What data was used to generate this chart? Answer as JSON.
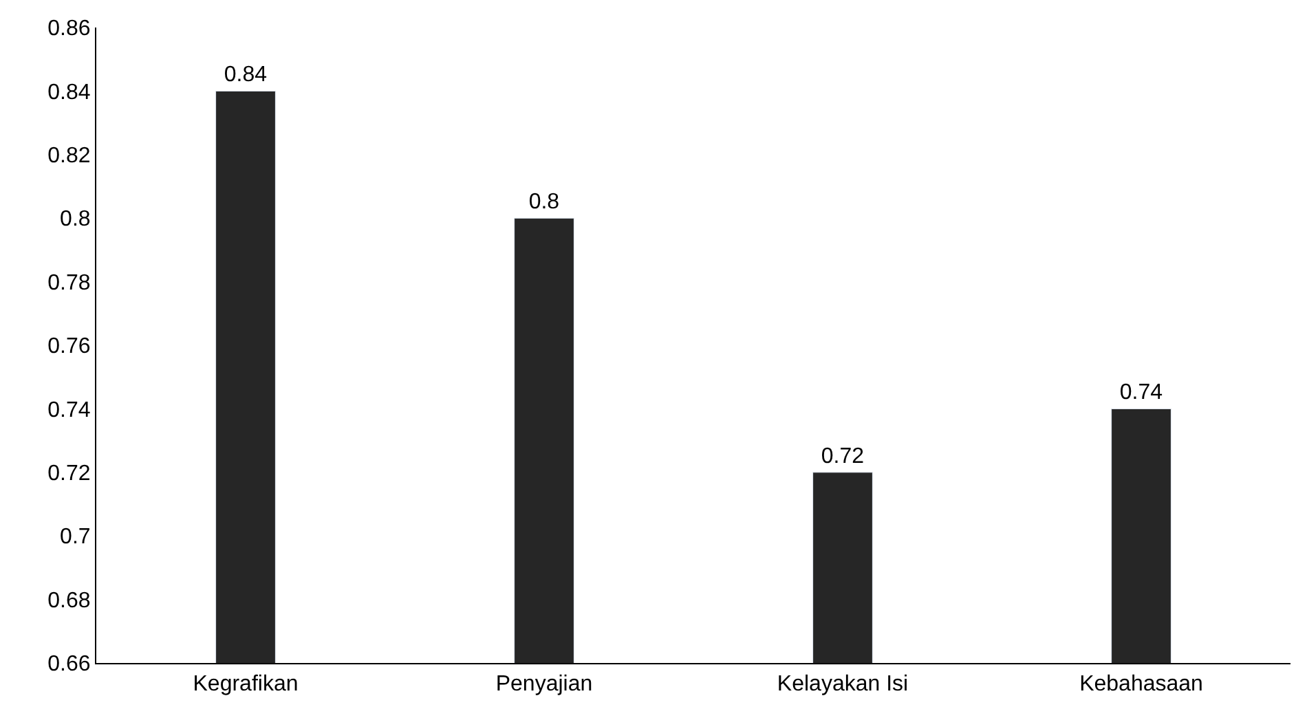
{
  "chart_data": {
    "type": "bar",
    "categories": [
      "Kegrafikan",
      "Penyajian",
      "Kelayakan Isi",
      "Kebahasaan"
    ],
    "values": [
      0.84,
      0.8,
      0.72,
      0.74
    ],
    "color": "#262626",
    "ylim": [
      0.66,
      0.86
    ],
    "yticks": [
      0.66,
      0.68,
      0.7,
      0.72,
      0.74,
      0.76,
      0.78,
      0.8,
      0.82,
      0.84,
      0.86
    ],
    "data_labels": true
  }
}
